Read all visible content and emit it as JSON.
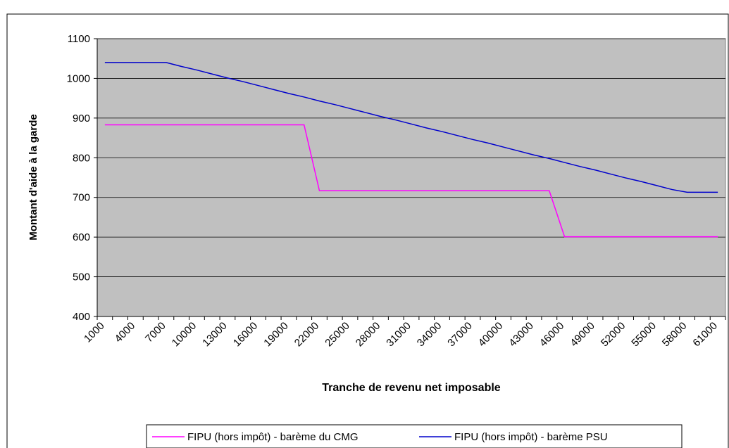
{
  "chart_data": {
    "type": "line",
    "x_label": "Tranche de revenu net imposable",
    "y_label": "Montant d'aide à la garde",
    "categories": [
      1000,
      2500,
      4000,
      5500,
      7000,
      8500,
      10000,
      11500,
      13000,
      14500,
      16000,
      17500,
      19000,
      20500,
      22000,
      23500,
      25000,
      26500,
      28000,
      29500,
      31000,
      32500,
      34000,
      35500,
      37000,
      38500,
      40000,
      41500,
      43000,
      44500,
      46000,
      47500,
      49000,
      50500,
      52000,
      53500,
      55000,
      56500,
      58000,
      59500,
      61000
    ],
    "category_labels_shown": [
      1000,
      4000,
      7000,
      10000,
      13000,
      16000,
      19000,
      22000,
      25000,
      28000,
      31000,
      34000,
      37000,
      40000,
      43000,
      46000,
      49000,
      52000,
      55000,
      58000,
      61000
    ],
    "series": [
      {
        "name": "FIPU (hors impôt) - barème du CMG",
        "color": "#ff00ff",
        "values": [
          883,
          883,
          883,
          883,
          883,
          883,
          883,
          883,
          883,
          883,
          883,
          883,
          883,
          883,
          717,
          717,
          717,
          717,
          717,
          717,
          717,
          717,
          717,
          717,
          717,
          717,
          717,
          717,
          717,
          717,
          601,
          601,
          601,
          601,
          601,
          601,
          601,
          601,
          601,
          601,
          601
        ]
      },
      {
        "name": "FIPU (hors impôt)  - barème PSU",
        "color": "#0000cc",
        "values": [
          1040,
          1040,
          1040,
          1040,
          1040,
          1030,
          1021,
          1011,
          1001,
          992,
          982,
          972,
          962,
          953,
          943,
          934,
          924,
          914,
          904,
          895,
          885,
          875,
          866,
          856,
          846,
          837,
          827,
          817,
          807,
          798,
          788,
          778,
          769,
          759,
          749,
          740,
          730,
          720,
          713,
          713,
          713
        ]
      }
    ],
    "ylim": [
      400,
      1100
    ],
    "yticks": [
      400,
      500,
      600,
      700,
      800,
      900,
      1000,
      1100
    ],
    "grid": true,
    "legend": "bottom"
  }
}
